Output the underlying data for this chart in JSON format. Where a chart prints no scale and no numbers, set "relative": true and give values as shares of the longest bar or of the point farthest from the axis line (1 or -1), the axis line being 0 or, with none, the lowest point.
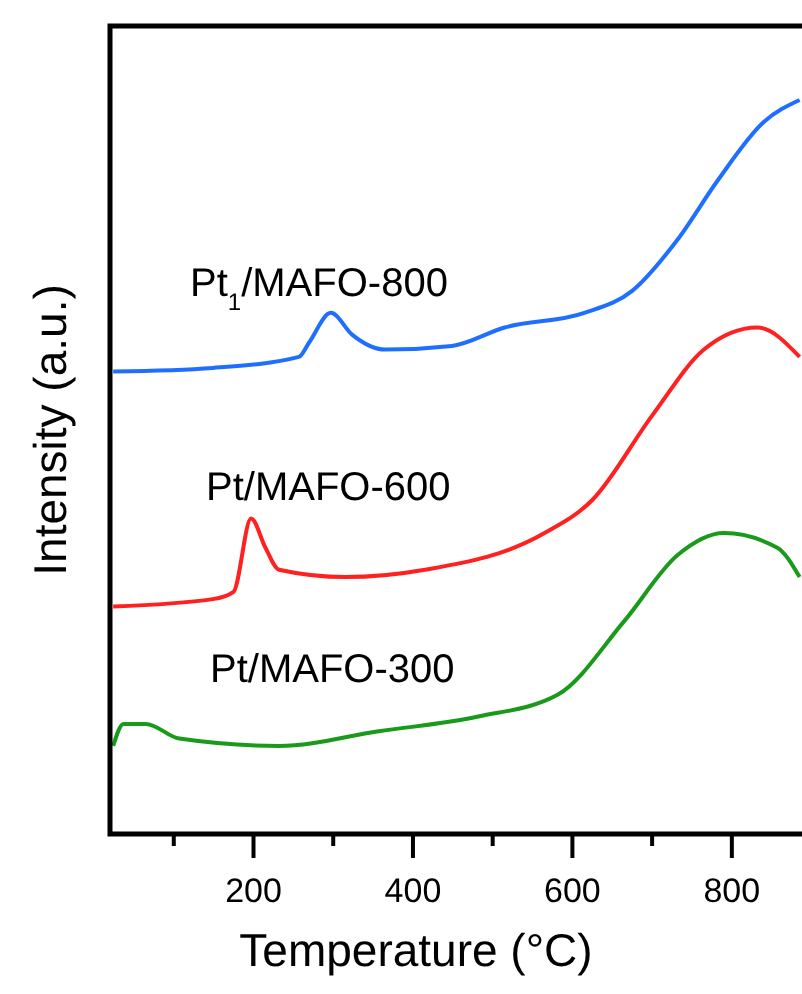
{
  "chart_data": {
    "type": "line",
    "xlabel": "Temperature (°C)",
    "ylabel": "Intensity (a.u.)",
    "relative": true,
    "xlim": [
      20,
      888
    ],
    "xticks": [
      {
        "value": 100,
        "label": null
      },
      200,
      {
        "value": 300,
        "label": null
      },
      400,
      {
        "value": 500,
        "label": null
      },
      600,
      {
        "value": 700,
        "label": null
      },
      800
    ],
    "grid": false,
    "marker": "none",
    "line_style": "solid",
    "series": [
      {
        "name": "Pt$_{1}$/MAFO-800",
        "color": "#1f6fff",
        "x": [
          24,
          149,
          257,
          270,
          297,
          324,
          365,
          449,
          515,
          615,
          675,
          732,
          782,
          840,
          885
        ],
        "values": [
          0.63,
          0.635,
          0.65,
          0.67,
          0.71,
          0.68,
          0.66,
          0.665,
          0.69,
          0.71,
          0.74,
          0.81,
          0.89,
          0.97,
          1
        ]
      },
      {
        "name": "Pt/MAFO-600",
        "color": "#ff2020",
        "x": [
          24,
          149,
          175,
          197,
          215,
          232,
          315,
          415,
          565,
          625,
          700,
          765,
          832,
          885
        ],
        "values": [
          0.31,
          0.32,
          0.33,
          0.43,
          0.39,
          0.36,
          0.35,
          0.36,
          0.41,
          0.455,
          0.57,
          0.66,
          0.69,
          0.65
        ]
      },
      {
        "name": "Pt/MAFO-300",
        "color": "#1a9a1a",
        "x": [
          24,
          37,
          65,
          107,
          232,
          357,
          482,
          582,
          665,
          732,
          790,
          857,
          885
        ],
        "values": [
          0.12,
          0.15,
          0.15,
          0.13,
          0.12,
          0.14,
          0.16,
          0.19,
          0.29,
          0.38,
          0.41,
          0.39,
          0.35
        ]
      }
    ]
  }
}
